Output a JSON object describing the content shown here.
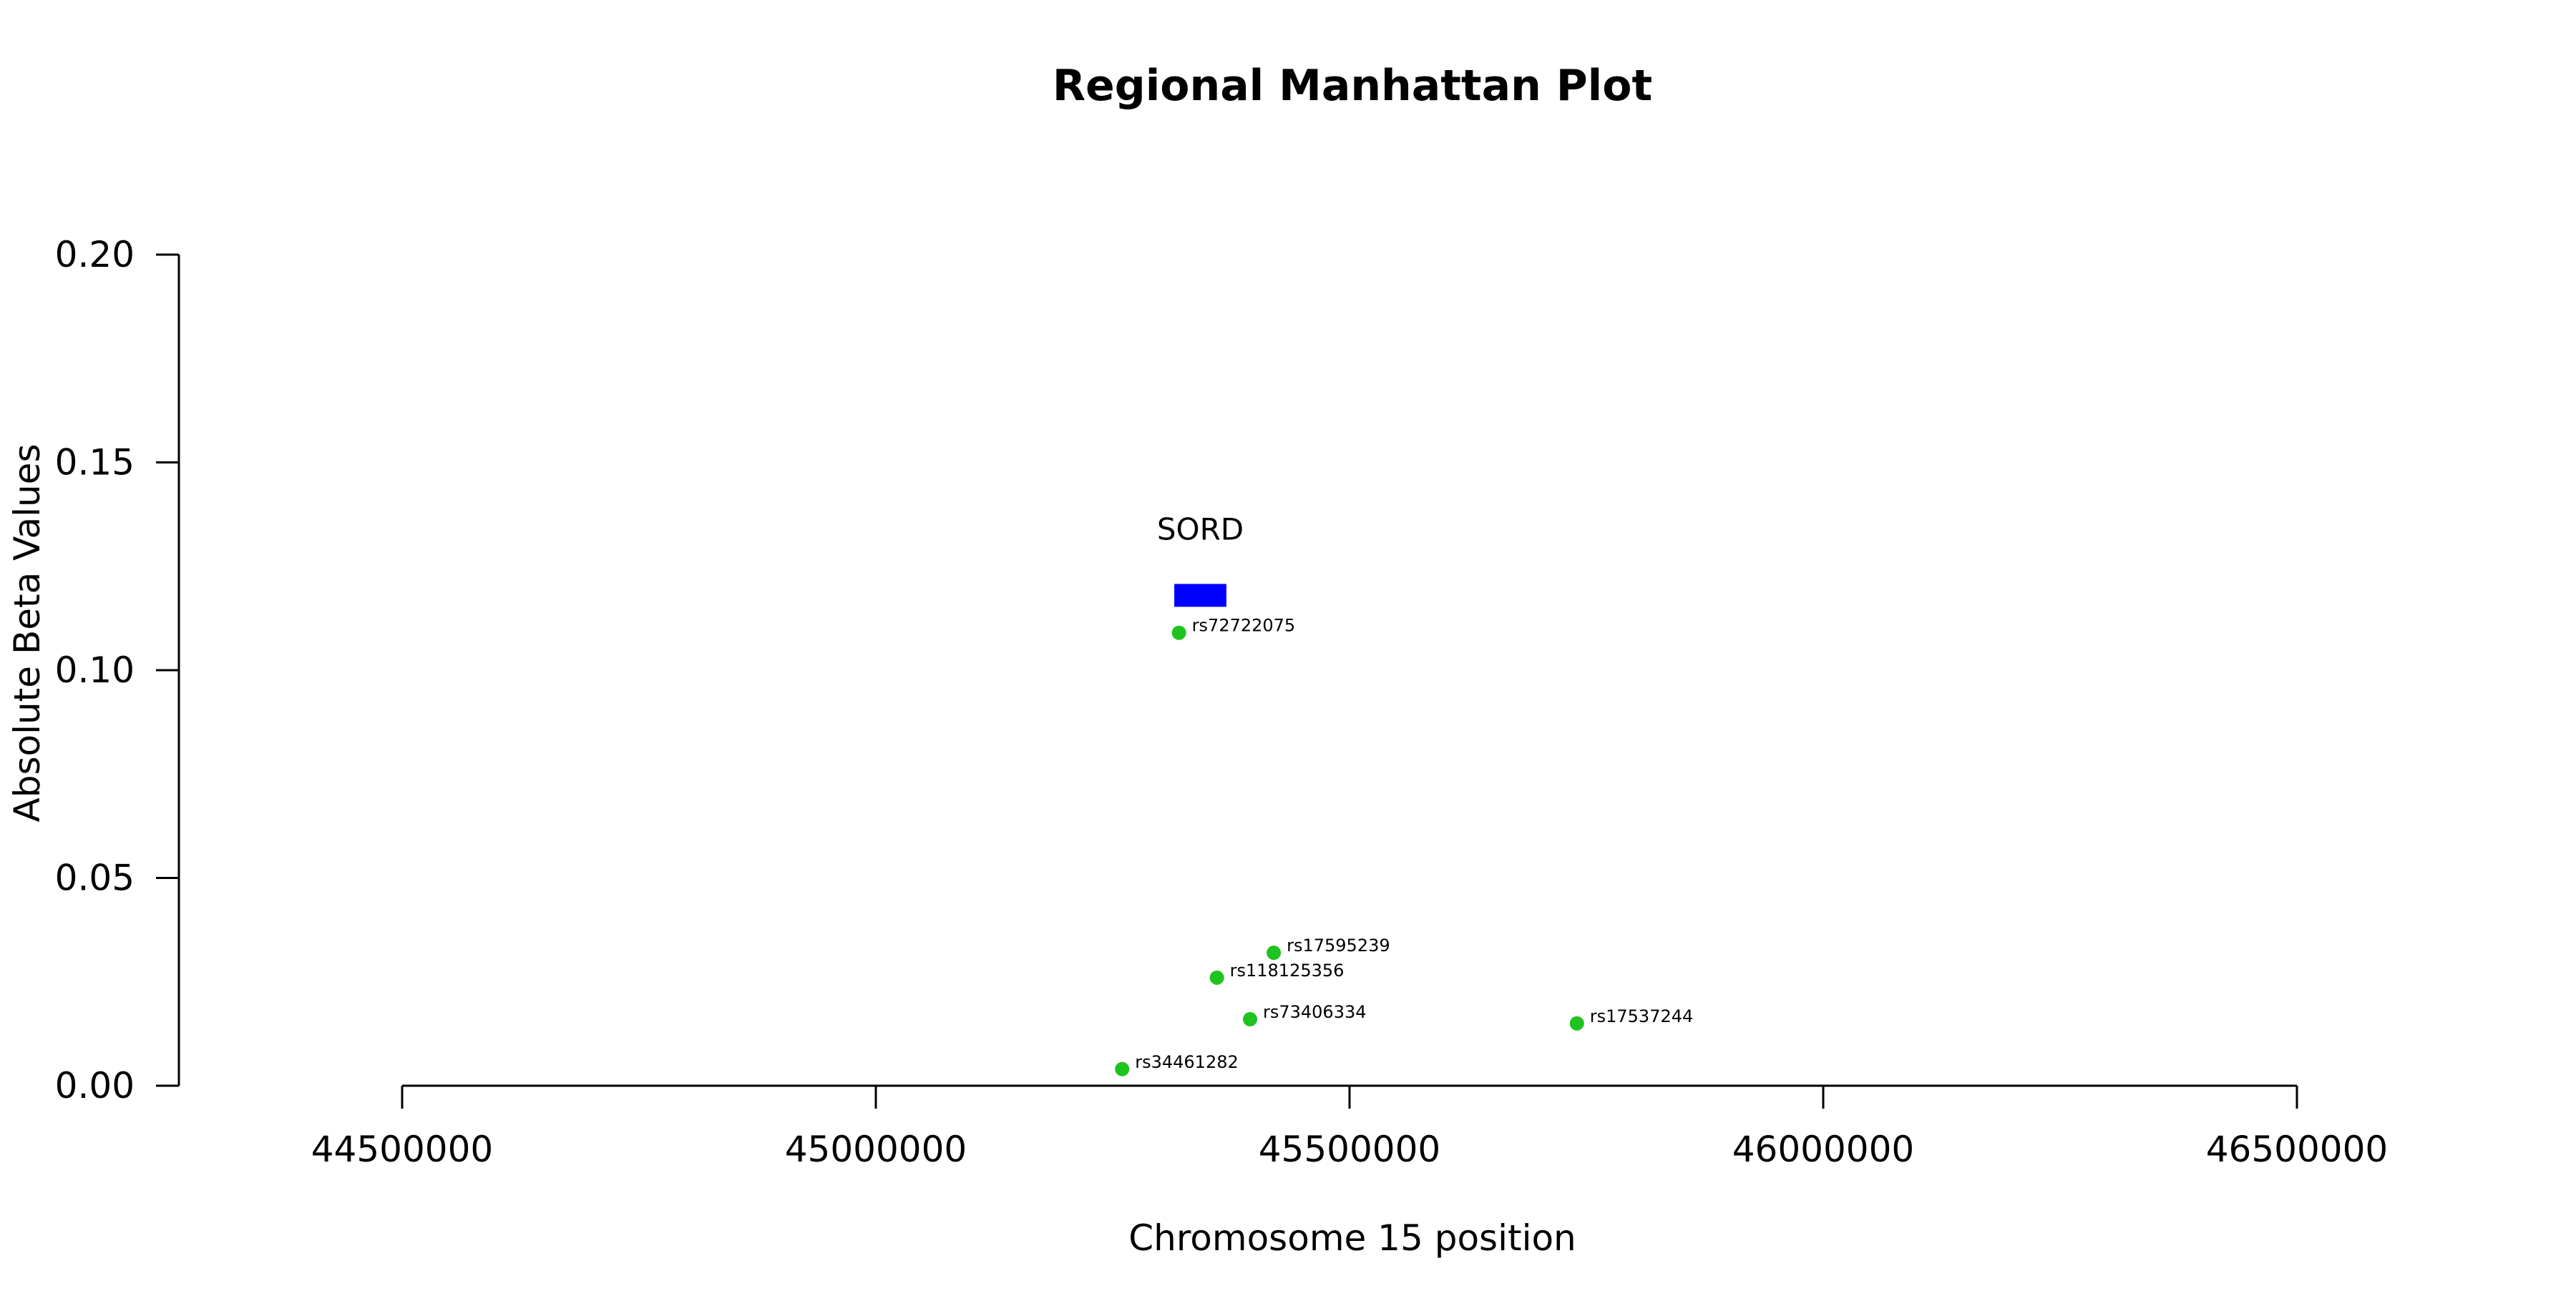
{
  "chart_data": {
    "type": "scatter",
    "title": "Regional Manhattan Plot",
    "xlabel": "Chromosome 15 position",
    "ylabel": "Absolute Beta Values",
    "xlim": [
      44500000,
      46500000
    ],
    "ylim": [
      0,
      0.2
    ],
    "x_ticks": [
      44500000,
      45000000,
      45500000,
      46000000,
      46500000
    ],
    "x_tick_labels": [
      "44500000",
      "45000000",
      "45500000",
      "46000000",
      "46500000"
    ],
    "y_ticks": [
      0,
      0.05,
      0.1,
      0.15,
      0.2
    ],
    "y_tick_labels": [
      "0.00",
      "0.05",
      "0.10",
      "0.15",
      "0.20"
    ],
    "grid": false,
    "point_color": "#1fc31f",
    "points": [
      {
        "label": "rs72722075",
        "x": 45320000,
        "y": 0.109
      },
      {
        "label": "rs17595239",
        "x": 45420000,
        "y": 0.032
      },
      {
        "label": "rs118125356",
        "x": 45360000,
        "y": 0.026
      },
      {
        "label": "rs73406334",
        "x": 45395000,
        "y": 0.016
      },
      {
        "label": "rs17537244",
        "x": 45740000,
        "y": 0.015
      },
      {
        "label": "rs34461282",
        "x": 45260000,
        "y": 0.004
      }
    ],
    "genes": [
      {
        "name": "SORD",
        "start": 45315000,
        "end": 45370000,
        "y": 0.118,
        "color": "#0000ff"
      }
    ]
  }
}
